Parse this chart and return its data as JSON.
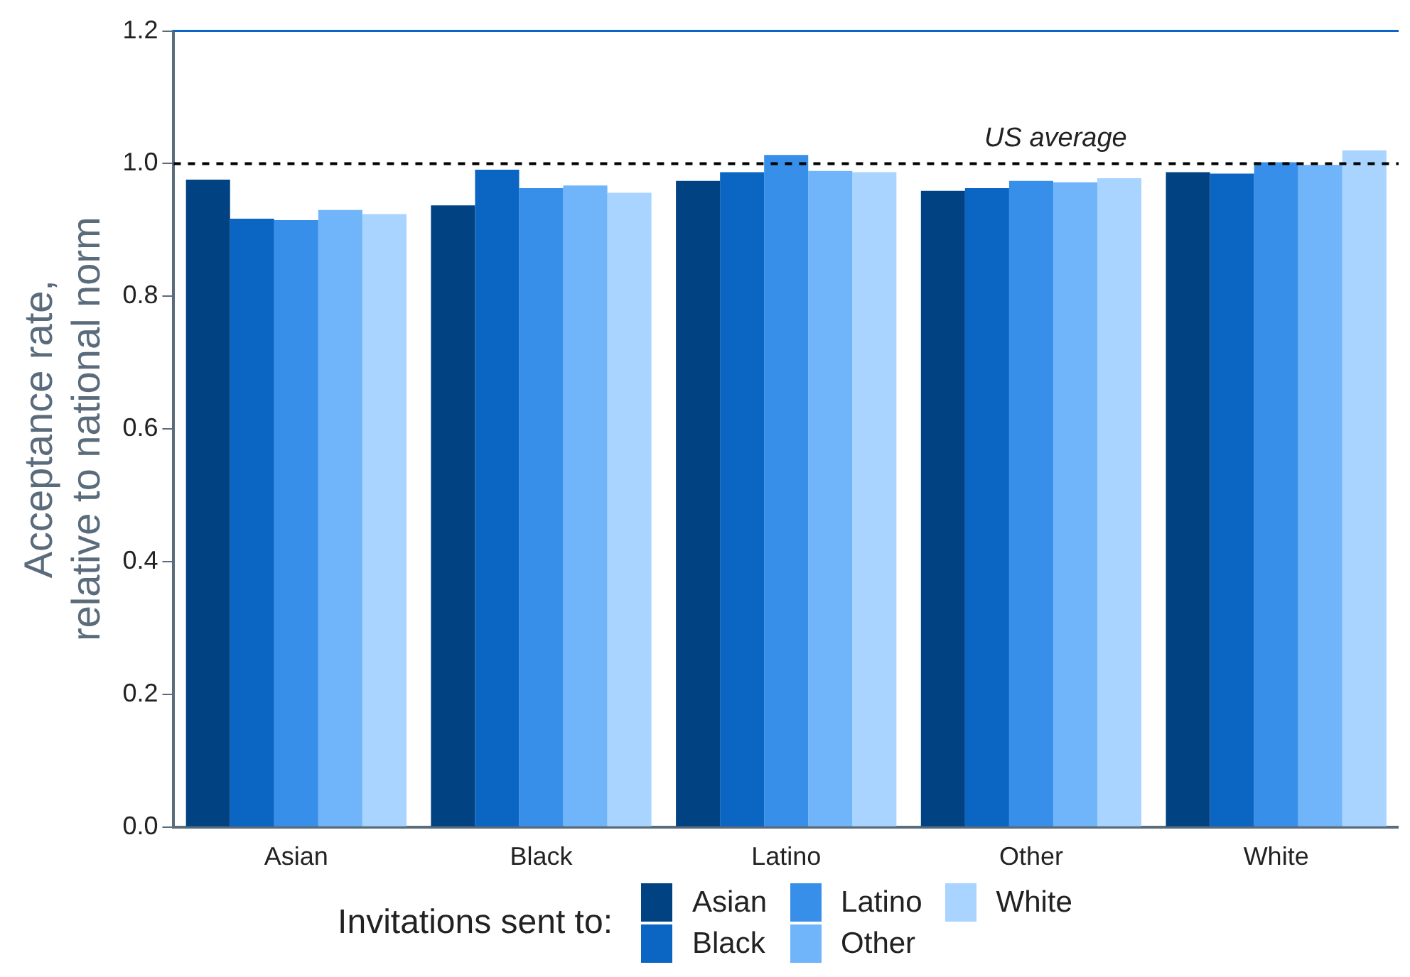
{
  "chart_data": {
    "type": "bar",
    "ylabel": "Acceptance rate,\nrelative to national norm",
    "legend_title": "Invitations sent to:",
    "categories": [
      "Asian",
      "Black",
      "Latino",
      "Other",
      "White"
    ],
    "series": [
      {
        "name": "Asian",
        "color": "#004282",
        "values": [
          0.976,
          0.937,
          0.974,
          0.959,
          0.987
        ]
      },
      {
        "name": "Black",
        "color": "#0a66c2",
        "values": [
          0.917,
          0.991,
          0.987,
          0.963,
          0.985
        ]
      },
      {
        "name": "Latino",
        "color": "#378fe9",
        "values": [
          0.915,
          0.963,
          1.013,
          0.974,
          1.002
        ]
      },
      {
        "name": "Other",
        "color": "#70b5f9",
        "values": [
          0.93,
          0.967,
          0.989,
          0.972,
          0.998
        ]
      },
      {
        "name": "White",
        "color": "#a8d4ff",
        "values": [
          0.924,
          0.956,
          0.987,
          0.978,
          1.02
        ]
      }
    ],
    "ylim": [
      0,
      1.2
    ],
    "yticks": [
      {
        "value": 0,
        "label": "0.0"
      },
      {
        "value": 0.2,
        "label": "0.2"
      },
      {
        "value": 0.4,
        "label": "0.4"
      },
      {
        "value": 0.6,
        "label": "0.6"
      },
      {
        "value": 0.8,
        "label": "0.8"
      },
      {
        "value": 1,
        "label": "1.0"
      },
      {
        "value": 1.2,
        "label": "1.2"
      }
    ],
    "ref_lines": [
      {
        "axis": "y",
        "value": 1.0,
        "label": "US average",
        "color": "#000000",
        "line_style": "dashed"
      }
    ],
    "grid": false,
    "legend": "bottom"
  }
}
